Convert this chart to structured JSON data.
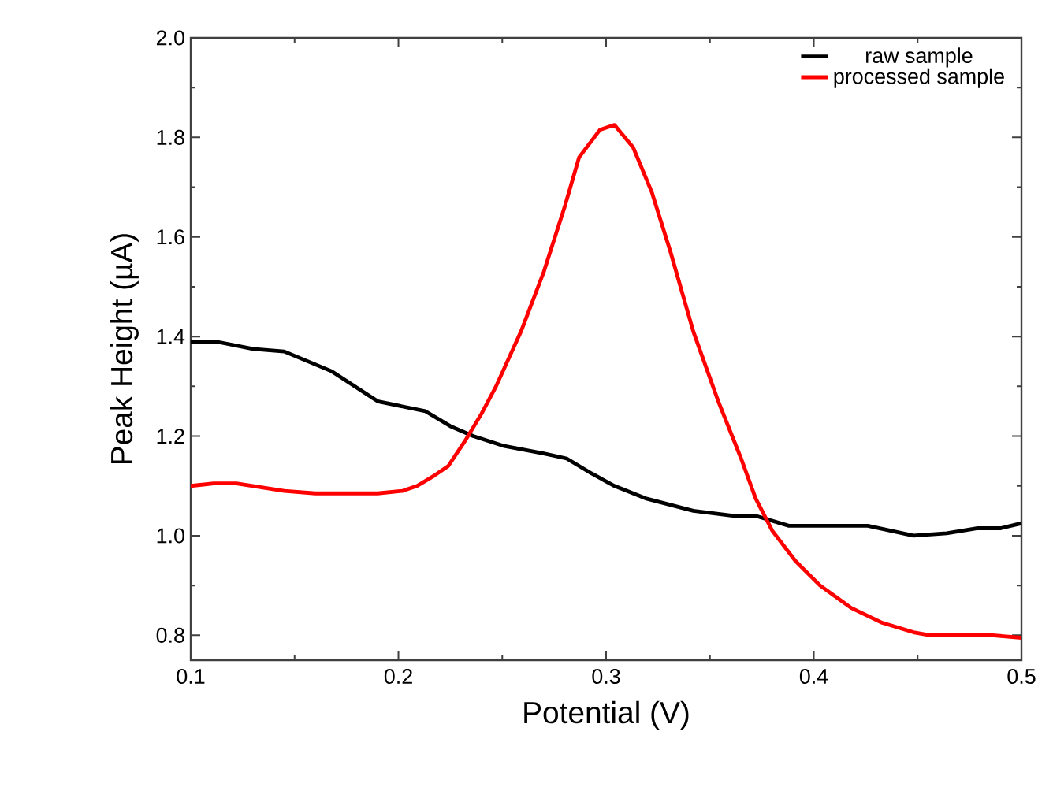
{
  "chart_data": {
    "type": "line",
    "xlabel": "Potential (V)",
    "ylabel": "Peak Height (µA)",
    "xlim": [
      0.1,
      0.5
    ],
    "ylim": [
      0.75,
      2.0
    ],
    "xticks": [
      0.1,
      0.2,
      0.3,
      0.4,
      0.5
    ],
    "yticks": [
      0.8,
      {
        "value": 1.0,
        "label": "1.0"
      },
      1.2,
      1.4,
      1.6,
      1.8,
      {
        "value": 2.0,
        "label": "2.0"
      }
    ],
    "legend": "top right",
    "marker": "none",
    "line_style": "solid",
    "series": [
      {
        "name": "raw sample",
        "color": "#000000",
        "x": [
          0.1,
          0.112,
          0.13,
          0.145,
          0.168,
          0.19,
          0.213,
          0.225,
          0.236,
          0.251,
          0.27,
          0.281,
          0.293,
          0.304,
          0.319,
          0.342,
          0.361,
          0.372,
          0.388,
          0.426,
          0.437,
          0.448,
          0.464,
          0.479,
          0.49,
          0.5
        ],
        "values": [
          1.39,
          1.39,
          1.375,
          1.37,
          1.33,
          1.27,
          1.25,
          1.22,
          1.2,
          1.18,
          1.165,
          1.155,
          1.125,
          1.1,
          1.075,
          1.05,
          1.04,
          1.04,
          1.02,
          1.02,
          1.01,
          1.0,
          1.005,
          1.015,
          1.015,
          1.025
        ]
      },
      {
        "name": "processed sample",
        "color": "#ff0000",
        "x": [
          0.1,
          0.111,
          0.122,
          0.145,
          0.16,
          0.19,
          0.202,
          0.209,
          0.217,
          0.224,
          0.232,
          0.24,
          0.247,
          0.259,
          0.27,
          0.28,
          0.287,
          0.297,
          0.304,
          0.313,
          0.322,
          0.331,
          0.342,
          0.354,
          0.365,
          0.372,
          0.38,
          0.391,
          0.403,
          0.418,
          0.433,
          0.448,
          0.456,
          0.464,
          0.486,
          0.5
        ],
        "values": [
          1.1,
          1.105,
          1.105,
          1.09,
          1.085,
          1.085,
          1.09,
          1.1,
          1.12,
          1.14,
          1.19,
          1.245,
          1.3,
          1.41,
          1.53,
          1.66,
          1.76,
          1.815,
          1.825,
          1.78,
          1.69,
          1.57,
          1.41,
          1.27,
          1.155,
          1.075,
          1.01,
          0.95,
          0.9,
          0.855,
          0.825,
          0.806,
          0.8,
          0.8,
          0.8,
          0.795
        ]
      }
    ]
  }
}
